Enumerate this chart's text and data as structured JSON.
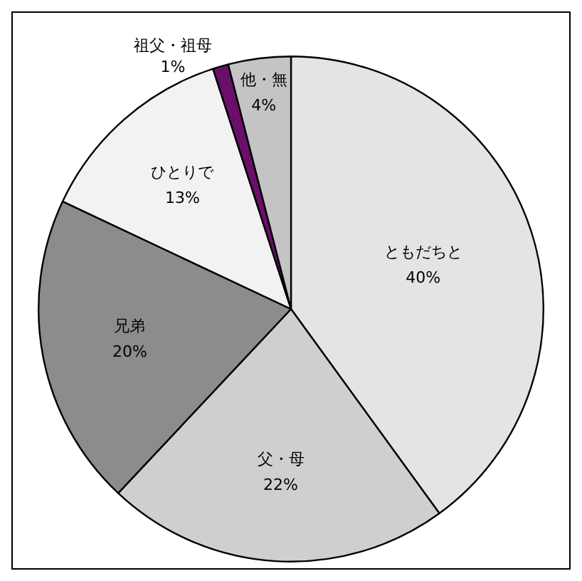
{
  "chart_data": {
    "type": "pie",
    "categories": [
      "ともだちと",
      "父・母",
      "兄弟",
      "ひとりで",
      "祖父・祖母",
      "他・無"
    ],
    "values": [
      40,
      22,
      20,
      13,
      1,
      4
    ],
    "colors": [
      "#e4e4e4",
      "#cfcfcf",
      "#8c8c8c",
      "#f2f2f2",
      "#6a0f6a",
      "#c4c4c4"
    ],
    "value_labels": [
      "40%",
      "22%",
      "20%",
      "13%",
      "1%",
      "4%"
    ],
    "legend": false
  }
}
